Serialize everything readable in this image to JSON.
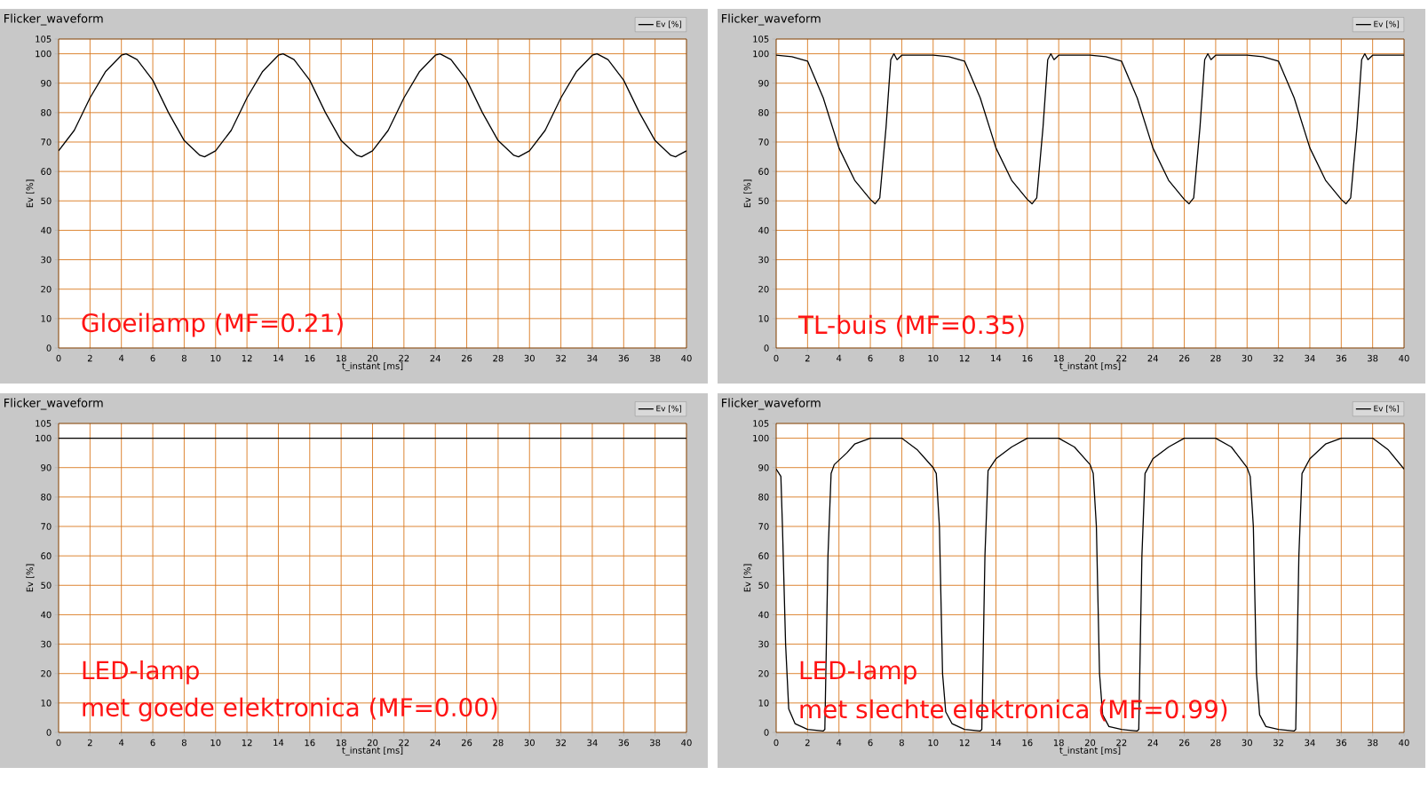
{
  "chart_data": [
    {
      "type": "line",
      "title": "Flicker_waveform",
      "xlabel": "t_instant [ms]",
      "ylabel": "Ev [%]",
      "xlim": [
        0,
        40
      ],
      "ylim": [
        0,
        105
      ],
      "grid": true,
      "legend": "top right",
      "xticks": [
        0,
        2,
        4,
        6,
        8,
        10,
        12,
        14,
        16,
        18,
        20,
        22,
        24,
        26,
        28,
        30,
        32,
        34,
        36,
        38,
        40
      ],
      "yticks": [
        0,
        10,
        20,
        30,
        40,
        50,
        60,
        70,
        80,
        90,
        100,
        105
      ],
      "annotations": [
        "Gloeilamp (MF=0.21)"
      ],
      "series": [
        {
          "name": "Ev [%]",
          "color": "#000000",
          "x": [
            0,
            1,
            2,
            3,
            4,
            4.3,
            5,
            6,
            7,
            8,
            9,
            9.3,
            10,
            11,
            12,
            13,
            14,
            14.3,
            15,
            16,
            17,
            18,
            19,
            19.3,
            20,
            21,
            22,
            23,
            24,
            24.3,
            25,
            26,
            27,
            28,
            29,
            29.3,
            30,
            31,
            32,
            33,
            34,
            34.3,
            35,
            36,
            37,
            38,
            39,
            39.3,
            40
          ],
          "values": [
            67,
            74,
            85,
            94,
            99.5,
            100,
            98,
            91,
            80,
            70.5,
            65.5,
            65,
            67,
            74,
            85,
            94,
            99.5,
            100,
            98,
            91,
            80,
            70.5,
            65.5,
            65,
            67,
            74,
            85,
            94,
            99.5,
            100,
            98,
            91,
            80,
            70.5,
            65.5,
            65,
            67,
            74,
            85,
            94,
            99.5,
            100,
            98,
            91,
            80,
            70.5,
            65.5,
            65,
            67
          ]
        }
      ]
    },
    {
      "type": "line",
      "title": "Flicker_waveform",
      "xlabel": "t_instant [ms]",
      "ylabel": "Ev [%]",
      "xlim": [
        0,
        40
      ],
      "ylim": [
        0,
        105
      ],
      "grid": true,
      "legend": "top right",
      "xticks": [
        0,
        2,
        4,
        6,
        8,
        10,
        12,
        14,
        16,
        18,
        20,
        22,
        24,
        26,
        28,
        30,
        32,
        34,
        36,
        38,
        40
      ],
      "yticks": [
        0,
        10,
        20,
        30,
        40,
        50,
        60,
        70,
        80,
        90,
        100,
        105
      ],
      "annotations": [
        "TL-buis (MF=0.35)"
      ],
      "series": [
        {
          "name": "Ev [%]",
          "color": "#000000",
          "x": [
            0,
            1,
            2,
            3,
            4,
            5,
            6,
            6.3,
            6.6,
            7,
            7.3,
            7.5,
            7.7,
            8,
            10,
            11,
            12,
            13,
            14,
            15,
            16,
            16.3,
            16.6,
            17,
            17.3,
            17.5,
            17.7,
            18,
            20,
            21,
            22,
            23,
            24,
            25,
            26,
            26.3,
            26.6,
            27,
            27.3,
            27.5,
            27.7,
            28,
            30,
            31,
            32,
            33,
            34,
            35,
            36,
            36.3,
            36.6,
            37,
            37.3,
            37.5,
            37.7,
            38,
            40
          ],
          "values": [
            99.5,
            99,
            97.5,
            85,
            68,
            57,
            50.5,
            49,
            51,
            75,
            98,
            100,
            98,
            99.5,
            99.5,
            99,
            97.5,
            85,
            68,
            57,
            50.5,
            49,
            51,
            75,
            98,
            100,
            98,
            99.5,
            99.5,
            99,
            97.5,
            85,
            68,
            57,
            50.5,
            49,
            51,
            75,
            98,
            100,
            98,
            99.5,
            99.5,
            99,
            97.5,
            85,
            68,
            57,
            50.5,
            49,
            51,
            75,
            98,
            100,
            98,
            99.5,
            99.5
          ]
        }
      ]
    },
    {
      "type": "line",
      "title": "Flicker_waveform",
      "xlabel": "t_instant [ms]",
      "ylabel": "Ev [%]",
      "xlim": [
        0,
        40
      ],
      "ylim": [
        0,
        105
      ],
      "grid": true,
      "legend": "top right",
      "xticks": [
        0,
        2,
        4,
        6,
        8,
        10,
        12,
        14,
        16,
        18,
        20,
        22,
        24,
        26,
        28,
        30,
        32,
        34,
        36,
        38,
        40
      ],
      "yticks": [
        0,
        10,
        20,
        30,
        40,
        50,
        60,
        70,
        80,
        90,
        100,
        105
      ],
      "annotations": [
        "LED-lamp",
        "met goede elektronica (MF=0.00)"
      ],
      "series": [
        {
          "name": "Ev [%]",
          "color": "#000000",
          "x": [
            0,
            4,
            8,
            12,
            16,
            20,
            24,
            28,
            32,
            36,
            40
          ],
          "values": [
            100,
            100,
            100,
            100,
            100,
            100,
            100,
            100,
            100,
            100,
            100
          ]
        }
      ]
    },
    {
      "type": "line",
      "title": "Flicker_waveform",
      "xlabel": "t_instant [ms]",
      "ylabel": "Ev [%]",
      "xlim": [
        0,
        40
      ],
      "ylim": [
        0,
        105
      ],
      "grid": true,
      "legend": "top right",
      "xticks": [
        0,
        2,
        4,
        6,
        8,
        10,
        12,
        14,
        16,
        18,
        20,
        22,
        24,
        26,
        28,
        30,
        32,
        34,
        36,
        38,
        40
      ],
      "yticks": [
        0,
        10,
        20,
        30,
        40,
        50,
        60,
        70,
        80,
        90,
        100,
        105
      ],
      "annotations": [
        "LED-lamp",
        "met slechte elektronica (MF=0.99)"
      ],
      "series": [
        {
          "name": "Ev [%]",
          "color": "#000000",
          "x": [
            0,
            0.3,
            0.4,
            0.6,
            0.8,
            1.2,
            2,
            3,
            3.1,
            3.3,
            3.5,
            3.7,
            4.5,
            5,
            6,
            8,
            9,
            10,
            10.2,
            10.4,
            10.6,
            10.8,
            11.2,
            12,
            13,
            13.1,
            13.3,
            13.5,
            14,
            15,
            16,
            18,
            19,
            20,
            20.2,
            20.4,
            20.6,
            20.8,
            21.2,
            22,
            23,
            23.1,
            23.3,
            23.5,
            24,
            25,
            26,
            28,
            29,
            30,
            30.2,
            30.4,
            30.6,
            30.8,
            31.2,
            32,
            33,
            33.1,
            33.3,
            33.5,
            34,
            35,
            36,
            38,
            39,
            40
          ],
          "values": [
            89.5,
            87,
            70,
            30,
            8,
            3,
            1,
            0.5,
            1,
            60,
            88,
            91,
            95,
            98,
            100,
            100,
            96,
            90,
            88,
            70,
            20,
            7,
            3,
            1,
            0.5,
            1,
            60,
            89,
            93,
            97,
            100,
            100,
            97,
            91,
            88,
            70,
            20,
            6,
            2,
            1,
            0.5,
            1,
            60,
            88,
            93,
            97,
            100,
            100,
            97,
            90,
            87,
            70,
            20,
            6,
            2,
            1,
            0.5,
            1,
            60,
            88,
            93,
            98,
            100,
            100,
            96,
            89.5
          ]
        }
      ]
    }
  ]
}
